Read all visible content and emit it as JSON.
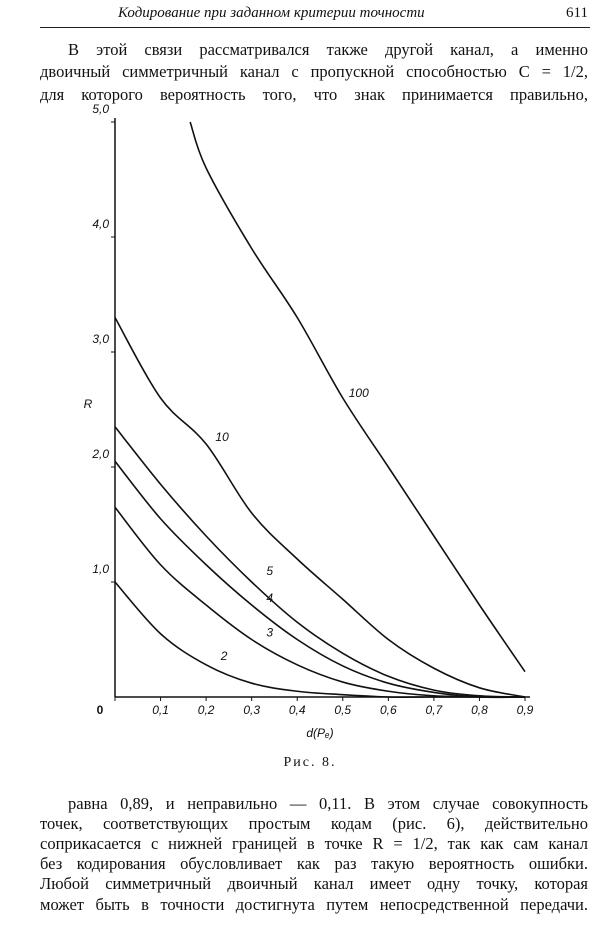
{
  "header": {
    "title": "Кодирование при заданном критерии точности",
    "page": "611"
  },
  "paragraphs": [
    [
      "В этой связи рассматривался также другой канал, а именно",
      "двоичный симметричный канал с пропускной способностью C = 1/2,",
      "для которого вероятность того, что знак принимается правильно,"
    ],
    [
      "равна 0,89, и неправильно — 0,11. В этом случае совокупность",
      "точек, соответствующих простым кодам (рис. 6), действительно",
      "соприкасается с нижней границей в точке R = 1/2, так как сам канал",
      "без кодирования обусловливает как раз такую вероятность ошибки.",
      "Любой симметричный двоичный канал имеет одну точку, которая",
      "может быть в точности достигнута путем непосредственной передачи."
    ]
  ],
  "chart_data": {
    "type": "line",
    "caption": "Рис. 8.",
    "x_label": "d(Pₑ)",
    "y_label": "R",
    "x": [
      0,
      0.1,
      0.2,
      0.3,
      0.4,
      0.5,
      0.6,
      0.7,
      0.8,
      0.9
    ],
    "series": [
      {
        "name": "2",
        "color": "#111",
        "values": [
          1.0,
          0.55,
          0.28,
          0.12,
          0.05,
          0.02,
          0,
          0,
          0,
          0
        ]
      },
      {
        "name": "3",
        "color": "#111",
        "values": [
          1.65,
          1.15,
          0.8,
          0.5,
          0.28,
          0.13,
          0.05,
          0.01,
          0,
          0
        ]
      },
      {
        "name": "4",
        "color": "#111",
        "values": [
          2.05,
          1.55,
          1.15,
          0.8,
          0.5,
          0.27,
          0.12,
          0.04,
          0,
          0
        ]
      },
      {
        "name": "5",
        "color": "#111",
        "values": [
          2.35,
          1.85,
          1.4,
          1.0,
          0.65,
          0.38,
          0.18,
          0.06,
          0.01,
          0
        ]
      },
      {
        "name": "10",
        "color": "#111",
        "values": [
          3.3,
          2.6,
          2.2,
          1.6,
          1.2,
          0.85,
          0.5,
          0.25,
          0.08,
          0
        ]
      },
      {
        "name": "100",
        "color": "#111",
        "x": [
          0.165,
          0.2,
          0.3,
          0.4,
          0.5,
          0.6,
          0.7,
          0.8,
          0.9
        ],
        "values": [
          5.0,
          4.6,
          3.9,
          3.3,
          2.6,
          2.0,
          1.4,
          0.8,
          0.22
        ]
      }
    ],
    "xlim": [
      0,
      0.9
    ],
    "ylim": [
      0,
      5
    ],
    "xticks": [
      0,
      {
        "value": 0.1,
        "label": "0,1"
      },
      {
        "value": 0.2,
        "label": "0,2"
      },
      {
        "value": 0.3,
        "label": "0,3"
      },
      {
        "value": 0.4,
        "label": "0,4"
      },
      {
        "value": 0.5,
        "label": "0,5"
      },
      {
        "value": 0.6,
        "label": "0,6"
      },
      {
        "value": 0.7,
        "label": "0,7"
      },
      {
        "value": 0.8,
        "label": "0,8"
      },
      {
        "value": 0.9,
        "label": "0,9"
      }
    ],
    "yticks": [
      {
        "value": 1,
        "label": "1,0"
      },
      {
        "value": 2,
        "label": "2,0"
      },
      {
        "value": 3,
        "label": "3,0"
      },
      {
        "value": 4,
        "label": "4,0"
      },
      {
        "value": 5,
        "label": "5,0"
      }
    ]
  }
}
